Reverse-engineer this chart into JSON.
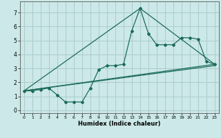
{
  "xlabel": "Humidex (Indice chaleur)",
  "background_color": "#cce8e8",
  "grid_color": "#aacccc",
  "line_color": "#1a6b5a",
  "xlim": [
    -0.5,
    23.5
  ],
  "ylim": [
    -0.2,
    7.8
  ],
  "xticks": [
    0,
    1,
    2,
    3,
    4,
    5,
    6,
    7,
    8,
    9,
    10,
    11,
    12,
    13,
    14,
    15,
    16,
    17,
    18,
    19,
    20,
    21,
    22,
    23
  ],
  "yticks": [
    0,
    1,
    2,
    3,
    4,
    5,
    6,
    7
  ],
  "series1_x": [
    0,
    1,
    2,
    3,
    4,
    5,
    6,
    7,
    8,
    9,
    10,
    11,
    12,
    13,
    14,
    15,
    16,
    17,
    18,
    19,
    20,
    21,
    22,
    23
  ],
  "series1_y": [
    1.4,
    1.4,
    1.5,
    1.6,
    1.1,
    0.6,
    0.6,
    0.6,
    1.6,
    2.9,
    3.2,
    3.2,
    3.3,
    5.7,
    7.3,
    5.5,
    4.7,
    4.7,
    4.7,
    5.2,
    5.2,
    5.1,
    3.5,
    3.3
  ],
  "series2_x": [
    0,
    23
  ],
  "series2_y": [
    1.4,
    3.3
  ],
  "series3_x": [
    0,
    14,
    23
  ],
  "series3_y": [
    1.4,
    7.3,
    3.3
  ],
  "series4_x": [
    0,
    23
  ],
  "series4_y": [
    1.4,
    3.2
  ]
}
